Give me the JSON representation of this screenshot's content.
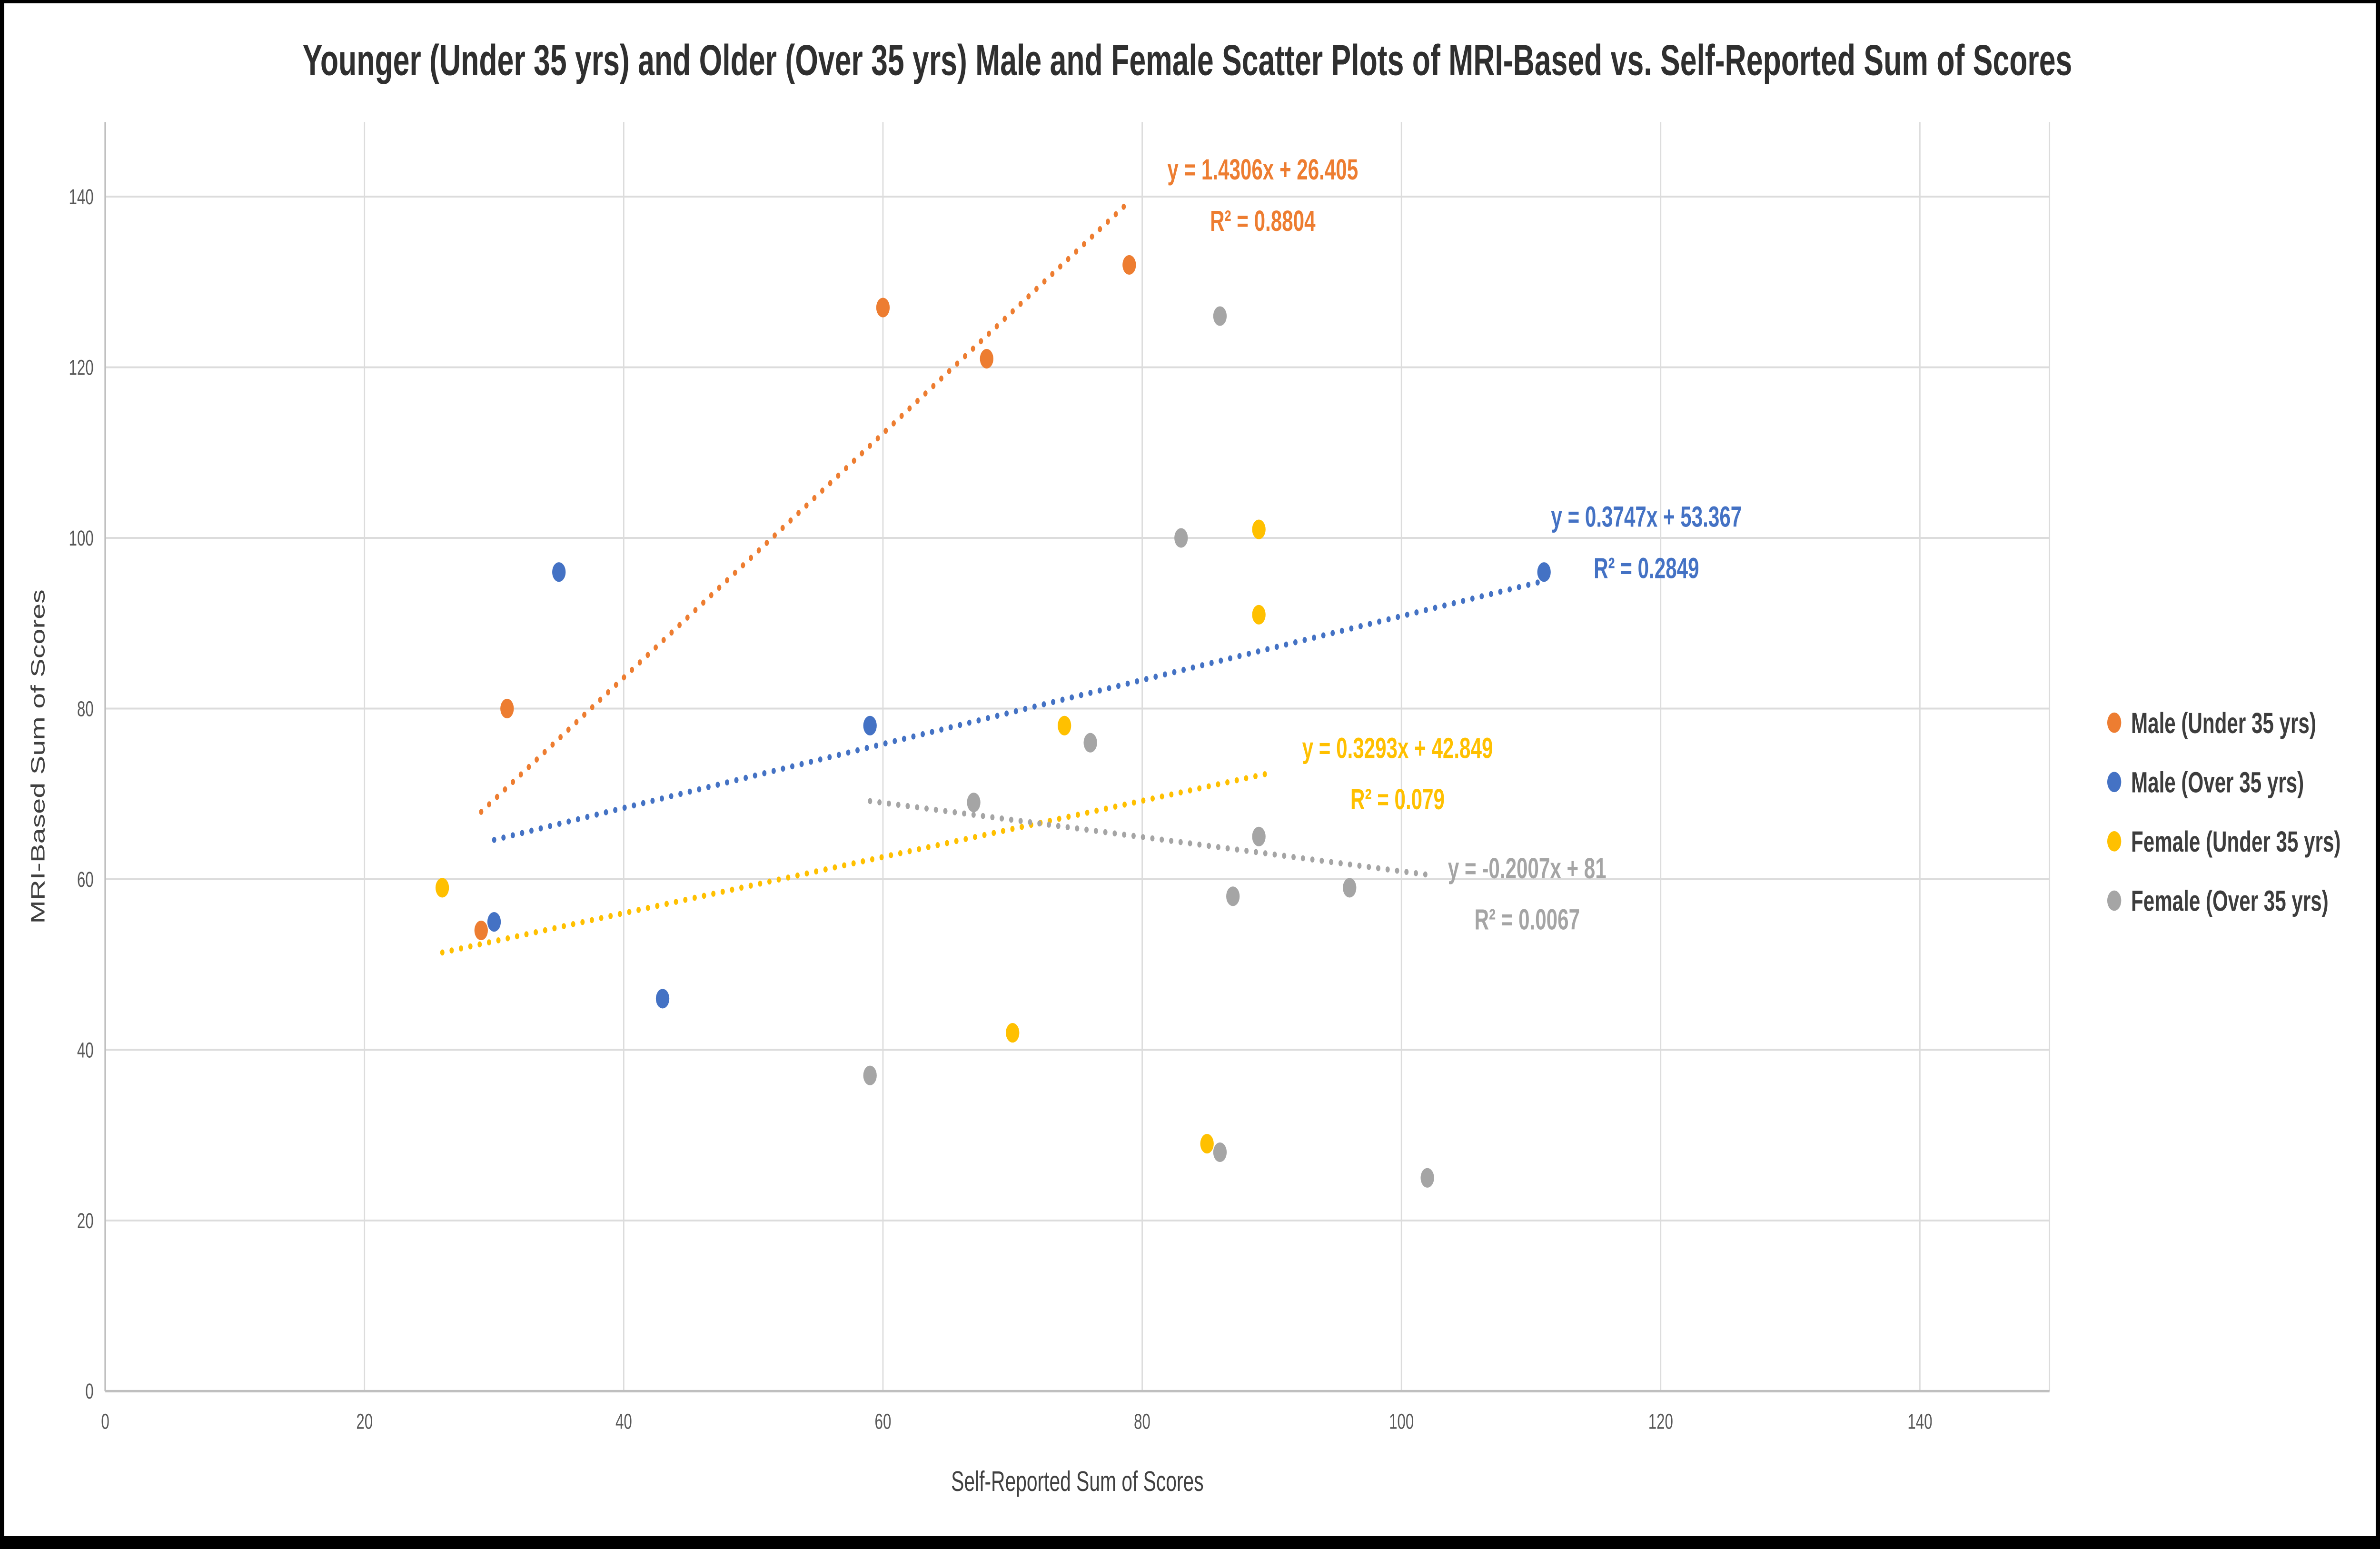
{
  "window": {
    "background": "#ffffff",
    "frame_color": "#000000"
  },
  "chart_data": {
    "type": "scatter",
    "title": "Younger (Under 35 yrs) and Older (Over 35 yrs) Male and Female Scatter Plots of MRI-Based vs. Self-Reported Sum of Scores",
    "xlabel": "Self-Reported Sum of Scores",
    "ylabel": "MRI-Based Sum of Scores",
    "xlim": [
      0,
      150
    ],
    "ylim": [
      0,
      145
    ],
    "x_ticks": [
      0,
      20,
      40,
      60,
      80,
      100,
      120,
      140
    ],
    "y_ticks": [
      0,
      20,
      40,
      60,
      80,
      100,
      120,
      140
    ],
    "grid": true,
    "legend_position": "right",
    "grid_color": "#dcdcdc",
    "axis_color": "#bfbfbf",
    "tick_color": "#595959",
    "series": [
      {
        "name": "Male (Under 35 yrs)",
        "color": "#ED7D31",
        "points": [
          [
            29,
            54
          ],
          [
            31,
            80
          ],
          [
            60,
            127
          ],
          [
            68,
            121
          ],
          [
            79,
            132
          ]
        ],
        "trendline": {
          "equation": "y = 1.4306x + 26.405",
          "r_squared": "R² = 0.8804",
          "slope": 1.4306,
          "intercept": 26.405,
          "x_range": [
            29,
            79
          ],
          "label_anchor": [
            89.3,
            142.0
          ]
        }
      },
      {
        "name": "Male (Over 35 yrs)",
        "color": "#4472C4",
        "points": [
          [
            30,
            55
          ],
          [
            35,
            96
          ],
          [
            43,
            46
          ],
          [
            59,
            78
          ],
          [
            111,
            96
          ]
        ],
        "trendline": {
          "equation": "y = 0.3747x + 53.367",
          "r_squared": "R² = 0.2849",
          "slope": 0.3747,
          "intercept": 53.367,
          "x_range": [
            30,
            111
          ],
          "label_anchor": [
            118.9,
            101.3
          ]
        }
      },
      {
        "name": "Female (Under 35 yrs)",
        "color": "#FFC000",
        "points": [
          [
            26,
            59
          ],
          [
            70,
            42
          ],
          [
            74,
            78
          ],
          [
            85,
            29
          ],
          [
            89,
            91
          ],
          [
            89,
            101
          ]
        ],
        "trendline": {
          "equation": "y = 0.3293x + 42.849",
          "r_squared": "R² = 0.079",
          "slope": 0.3293,
          "intercept": 42.849,
          "x_range": [
            26,
            90
          ],
          "label_anchor": [
            99.7,
            74.2
          ]
        }
      },
      {
        "name": "Female (Over 35 yrs)",
        "color": "#A5A5A5",
        "points": [
          [
            59,
            37
          ],
          [
            67,
            69
          ],
          [
            76,
            76
          ],
          [
            83,
            100
          ],
          [
            86,
            126
          ],
          [
            86,
            28
          ],
          [
            87,
            58
          ],
          [
            89,
            65
          ],
          [
            96,
            59
          ],
          [
            102,
            25
          ]
        ],
        "trendline": {
          "equation": "y = -0.2007x + 81",
          "r_squared": "R² = 0.0067",
          "slope": -0.2007,
          "intercept": 81,
          "x_range": [
            59,
            102
          ],
          "label_anchor": [
            109.7,
            60.1
          ]
        }
      }
    ]
  }
}
